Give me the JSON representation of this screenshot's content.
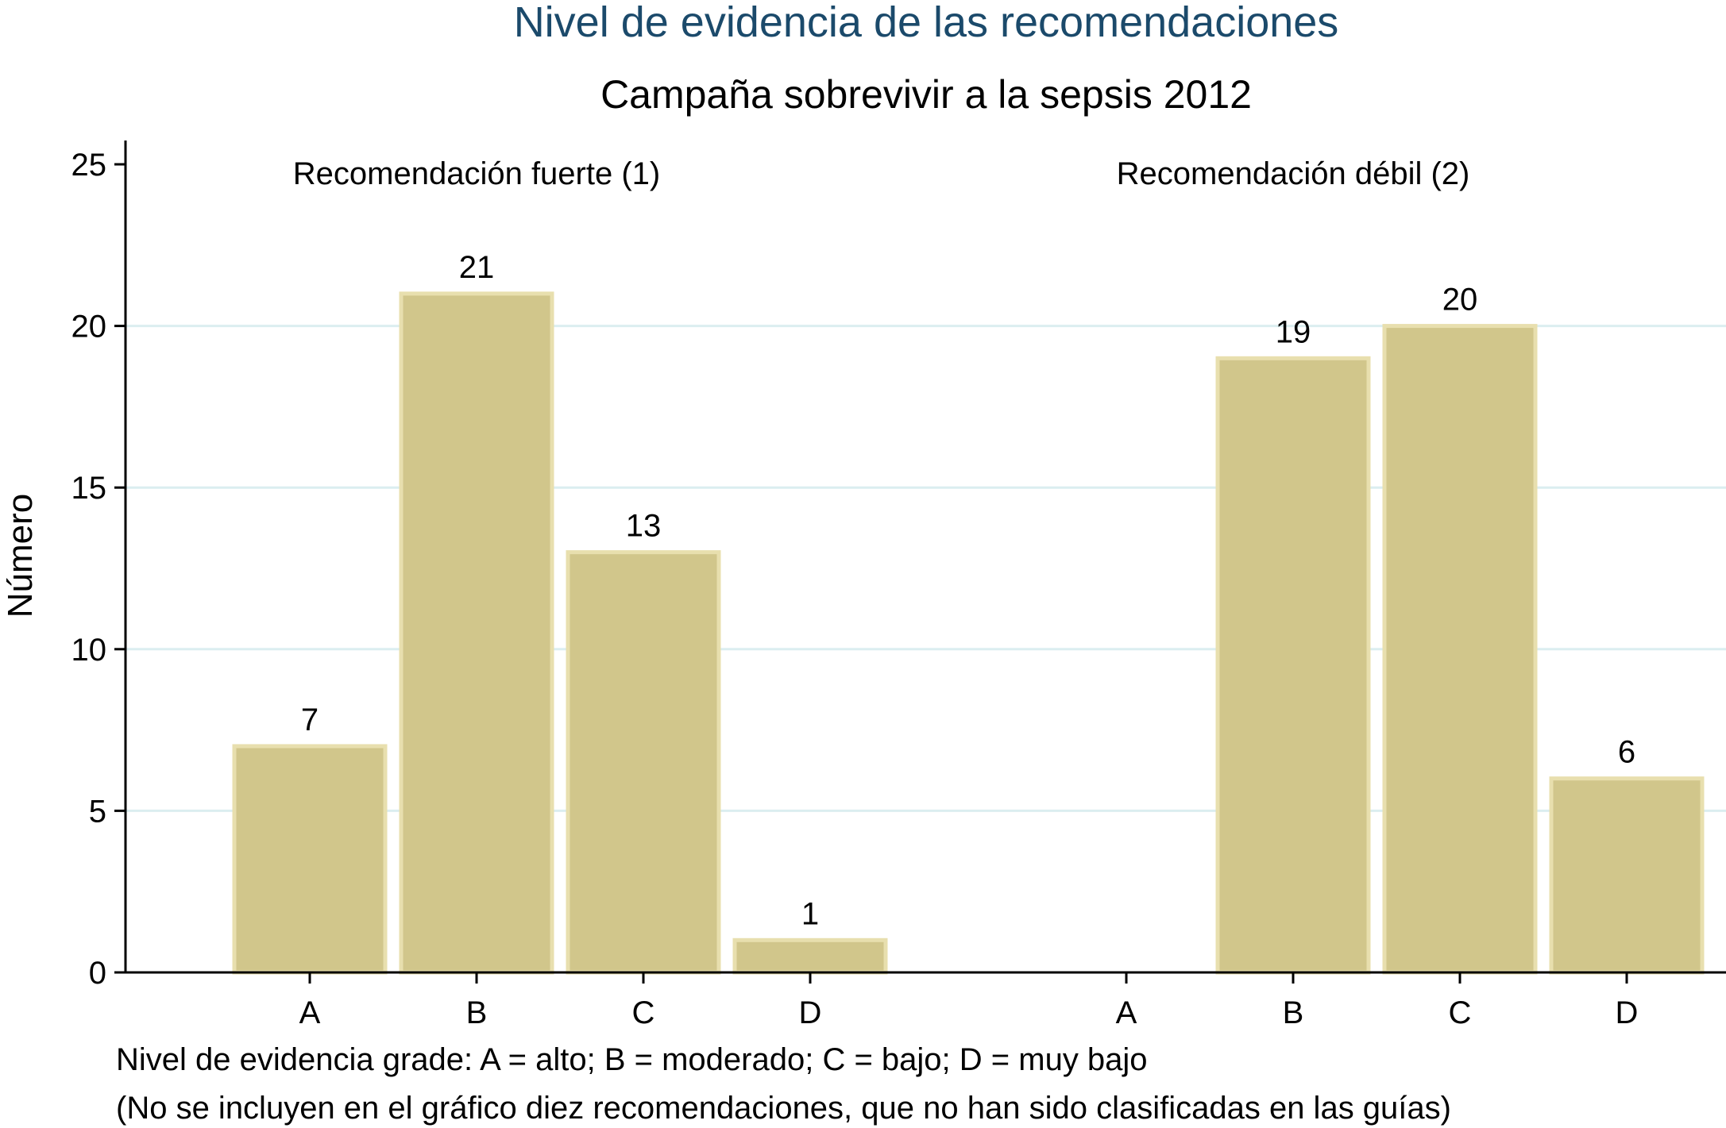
{
  "colors": {
    "bar": "#d1c68b",
    "bar_edge": "#e8dfae",
    "title": "#1b4a6b",
    "grid": "#dbeef0"
  },
  "chart_data": {
    "type": "bar",
    "title": "Nivel de evidencia de las recomendaciones",
    "subtitle": "Campaña sobrevivir a la sepsis 2012",
    "ylabel": "Número",
    "ylim": [
      0,
      25
    ],
    "yticks": [
      0,
      5,
      10,
      15,
      20,
      25
    ],
    "grid": true,
    "panels": [
      {
        "name": "Recomendación fuerte (1)",
        "categories": [
          "A",
          "B",
          "C",
          "D"
        ],
        "values": [
          7,
          21,
          13,
          1
        ],
        "value_labels": [
          "7",
          "21",
          "13",
          "1"
        ]
      },
      {
        "name": "Recomendación débil (2)",
        "categories": [
          "A",
          "B",
          "C",
          "D"
        ],
        "values": [
          0,
          19,
          20,
          6
        ],
        "value_labels": [
          "",
          "19",
          "20",
          "6"
        ]
      }
    ],
    "notes": [
      "Nivel de evidencia grade: A = alto; B = moderado; C = bajo; D = muy bajo",
      "(No se incluyen en el gráfico diez recomendaciones, que no han sido clasificadas en las guías)"
    ]
  }
}
